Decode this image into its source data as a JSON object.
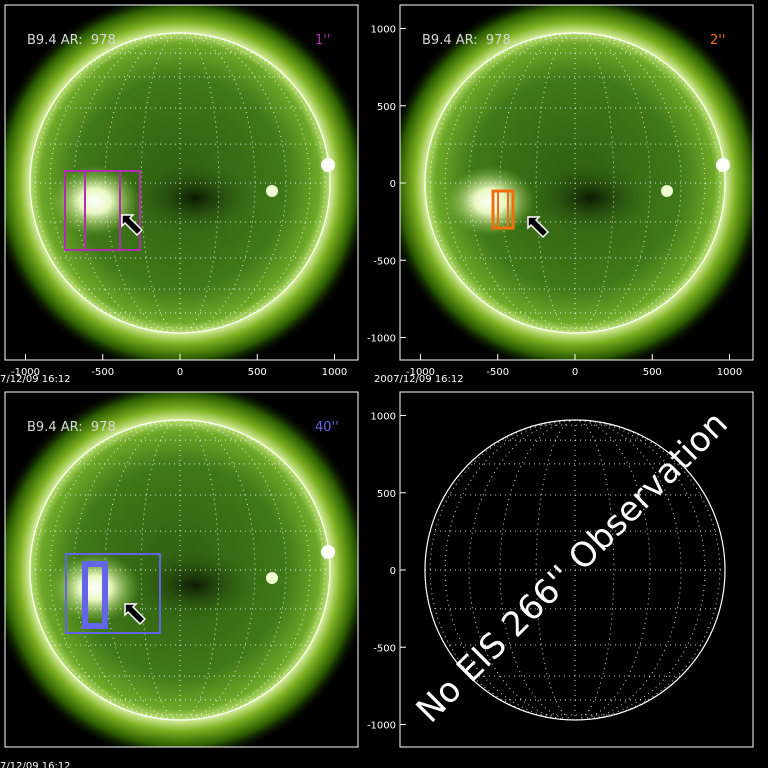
{
  "panels": [
    {
      "label": "B9.4 AR:  978",
      "slit": "1''",
      "timestamp": "7/12/09 16:12",
      "xticks": [
        -1000,
        -500,
        0,
        500,
        1000
      ]
    },
    {
      "label": "B9.4 AR:  978",
      "slit": "2''",
      "timestamp": "2007/12/09 16:12",
      "xticks": [
        -1000,
        -500,
        0,
        500,
        1000
      ],
      "yticks": [
        1000,
        500,
        0,
        -500,
        -1000
      ]
    },
    {
      "label": "B9.4 AR:  978",
      "slit": "40''",
      "timestamp": "7/12/09 16:12"
    },
    {
      "annotation": "No EIS 266'' Observation",
      "yticks": [
        1000,
        500,
        0,
        -500,
        -1000
      ]
    }
  ]
}
